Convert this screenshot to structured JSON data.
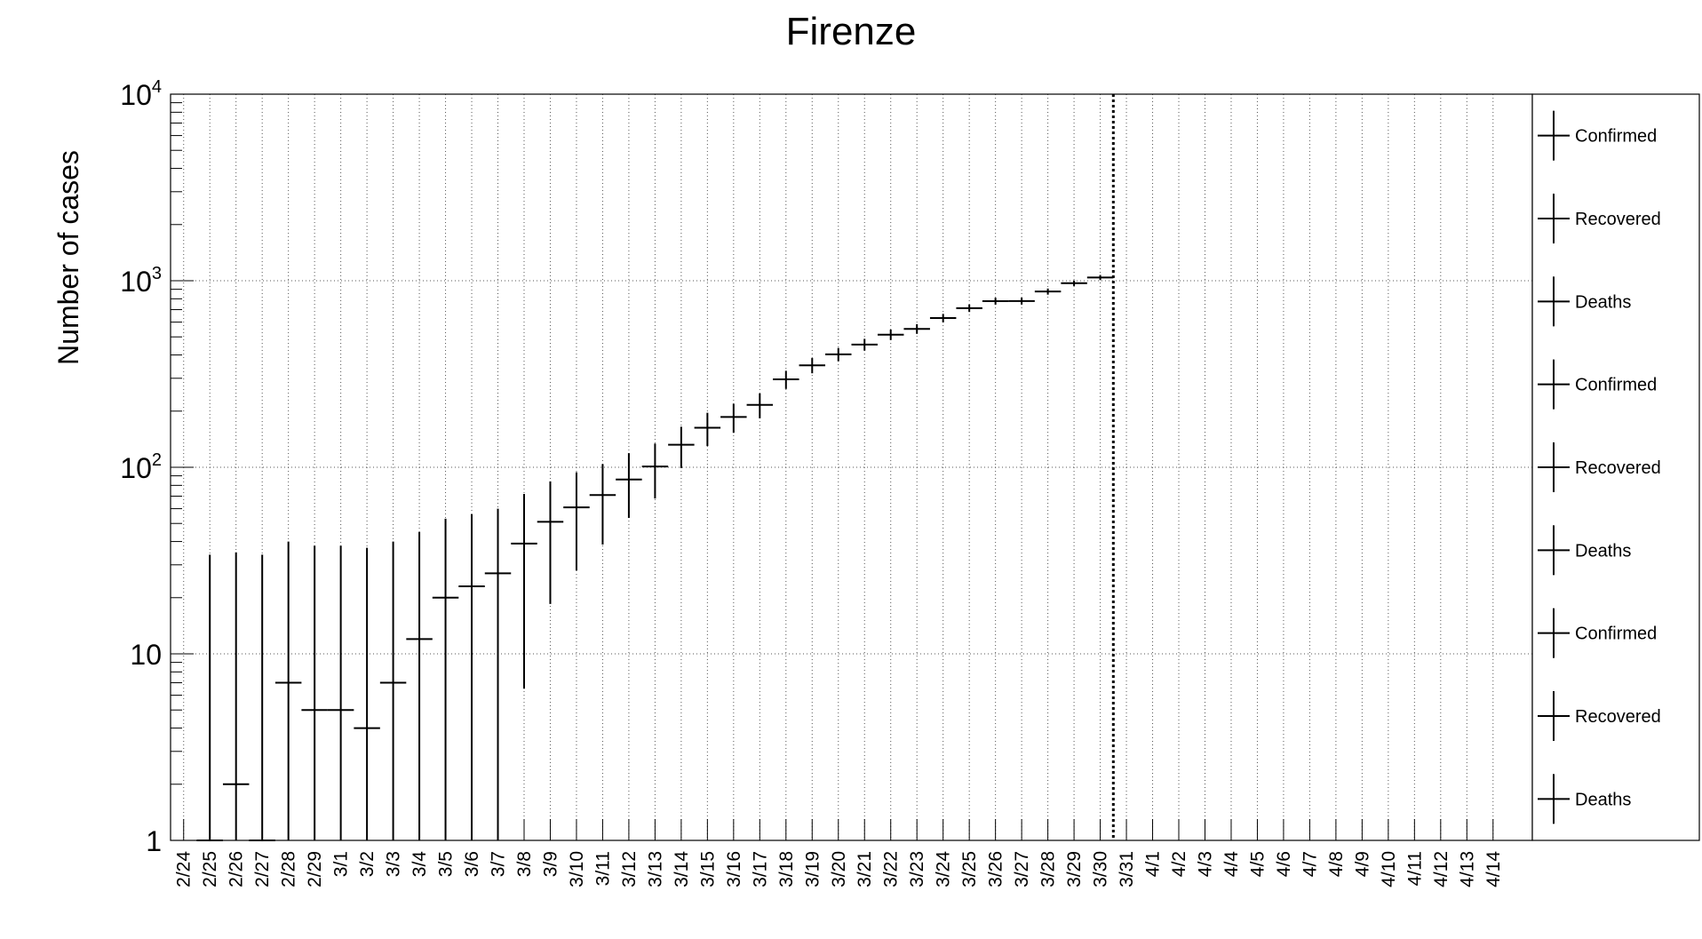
{
  "chart_data": {
    "type": "scatter",
    "title": "Firenze",
    "xlabel": "",
    "ylabel": "Number of cases",
    "y_scale": "log",
    "ylim": [
      1,
      10000
    ],
    "y_ticks": [
      {
        "value": 1,
        "base": "1",
        "exp": ""
      },
      {
        "value": 10,
        "base": "10",
        "exp": ""
      },
      {
        "value": 100,
        "base": "10",
        "exp": "2"
      },
      {
        "value": 1000,
        "base": "10",
        "exp": "3"
      },
      {
        "value": 10000,
        "base": "10",
        "exp": "4"
      }
    ],
    "categories": [
      "2/24",
      "2/25",
      "2/26",
      "2/27",
      "2/28",
      "2/29",
      "3/1",
      "3/2",
      "3/3",
      "3/4",
      "3/5",
      "3/6",
      "3/7",
      "3/8",
      "3/9",
      "3/10",
      "3/11",
      "3/12",
      "3/13",
      "3/14",
      "3/15",
      "3/16",
      "3/17",
      "3/18",
      "3/19",
      "3/20",
      "3/21",
      "3/22",
      "3/23",
      "3/24",
      "3/25",
      "3/26",
      "3/27",
      "3/28",
      "3/29",
      "3/30",
      "3/31",
      "4/1",
      "4/2",
      "4/3",
      "4/4",
      "4/5",
      "4/6",
      "4/7",
      "4/8",
      "4/9",
      "4/10",
      "4/11",
      "4/12",
      "4/13",
      "4/14"
    ],
    "grid": true,
    "vertical_marker": "3/30",
    "legend_position": "right",
    "legend": [
      "Confirmed",
      "Recovered",
      "Deaths",
      "Confirmed",
      "Recovered",
      "Deaths",
      "Confirmed",
      "Recovered",
      "Deaths"
    ],
    "series": [
      {
        "points": [
          {
            "x": "2/25",
            "y": 1,
            "err_low": 1,
            "err_high": 34
          },
          {
            "x": "2/26",
            "y": 2,
            "err_low": 1,
            "err_high": 35
          },
          {
            "x": "2/27",
            "y": 1,
            "err_low": 1,
            "err_high": 34
          },
          {
            "x": "2/28",
            "y": 7,
            "err_low": 1,
            "err_high": 40
          },
          {
            "x": "2/29",
            "y": 5,
            "err_low": 1,
            "err_high": 38
          },
          {
            "x": "3/1",
            "y": 5,
            "err_low": 1,
            "err_high": 38
          },
          {
            "x": "3/2",
            "y": 4,
            "err_low": 1,
            "err_high": 37
          },
          {
            "x": "3/3",
            "y": 7,
            "err_low": 1,
            "err_high": 40
          },
          {
            "x": "3/4",
            "y": 12,
            "err_low": 1,
            "err_high": 45
          },
          {
            "x": "3/5",
            "y": 20,
            "err_low": 1,
            "err_high": 53
          },
          {
            "x": "3/6",
            "y": 23,
            "err_low": 1,
            "err_high": 56
          },
          {
            "x": "3/7",
            "y": 27,
            "err_low": 1,
            "err_high": 60
          },
          {
            "x": "3/8",
            "y": 39,
            "err_low": 6.5,
            "err_high": 72
          },
          {
            "x": "3/9",
            "y": 51,
            "err_low": 18.5,
            "err_high": 84
          },
          {
            "x": "3/10",
            "y": 61,
            "err_low": 28,
            "err_high": 94
          },
          {
            "x": "3/11",
            "y": 71,
            "err_low": 38.5,
            "err_high": 104
          },
          {
            "x": "3/12",
            "y": 86,
            "err_low": 53.5,
            "err_high": 119
          },
          {
            "x": "3/13",
            "y": 101,
            "err_low": 68,
            "err_high": 134
          },
          {
            "x": "3/14",
            "y": 132,
            "err_low": 99,
            "err_high": 165
          },
          {
            "x": "3/15",
            "y": 163,
            "err_low": 130,
            "err_high": 196
          },
          {
            "x": "3/16",
            "y": 186,
            "err_low": 153,
            "err_high": 219
          },
          {
            "x": "3/17",
            "y": 216,
            "err_low": 183,
            "err_high": 249
          },
          {
            "x": "3/18",
            "y": 296,
            "err_low": 263,
            "err_high": 329
          },
          {
            "x": "3/19",
            "y": 352,
            "err_low": 319,
            "err_high": 385
          },
          {
            "x": "3/20",
            "y": 403,
            "err_low": 370,
            "err_high": 436
          },
          {
            "x": "3/21",
            "y": 455,
            "err_low": 422,
            "err_high": 488
          },
          {
            "x": "3/22",
            "y": 514,
            "err_low": 481,
            "err_high": 547
          },
          {
            "x": "3/23",
            "y": 552,
            "err_low": 519,
            "err_high": 585
          },
          {
            "x": "3/24",
            "y": 631,
            "err_low": 598,
            "err_high": 664
          },
          {
            "x": "3/25",
            "y": 713,
            "err_low": 680,
            "err_high": 746
          },
          {
            "x": "3/26",
            "y": 777,
            "err_low": 744,
            "err_high": 810
          },
          {
            "x": "3/27",
            "y": 778,
            "err_low": 745,
            "err_high": 811
          },
          {
            "x": "3/28",
            "y": 875,
            "err_low": 842,
            "err_high": 908
          },
          {
            "x": "3/29",
            "y": 970,
            "err_low": 937,
            "err_high": 1003
          },
          {
            "x": "3/30",
            "y": 1040,
            "err_low": 1007,
            "err_high": 1073
          }
        ]
      }
    ]
  }
}
